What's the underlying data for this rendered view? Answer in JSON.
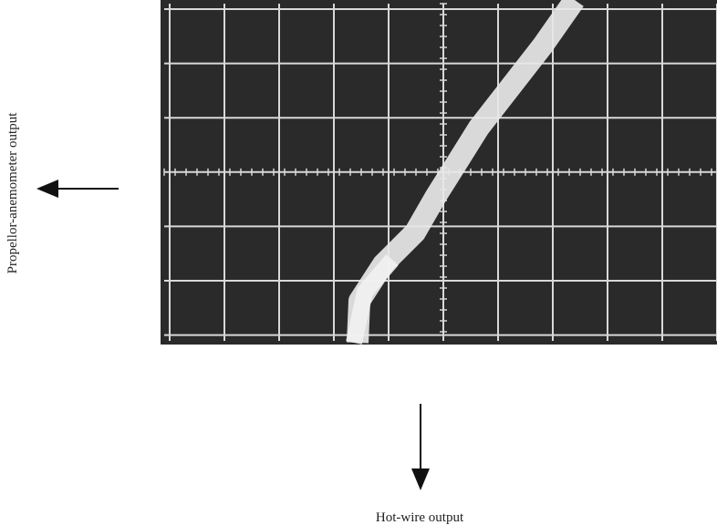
{
  "y_label": "Propellor-anemometer output",
  "x_label": "Hot-wire output"
}
